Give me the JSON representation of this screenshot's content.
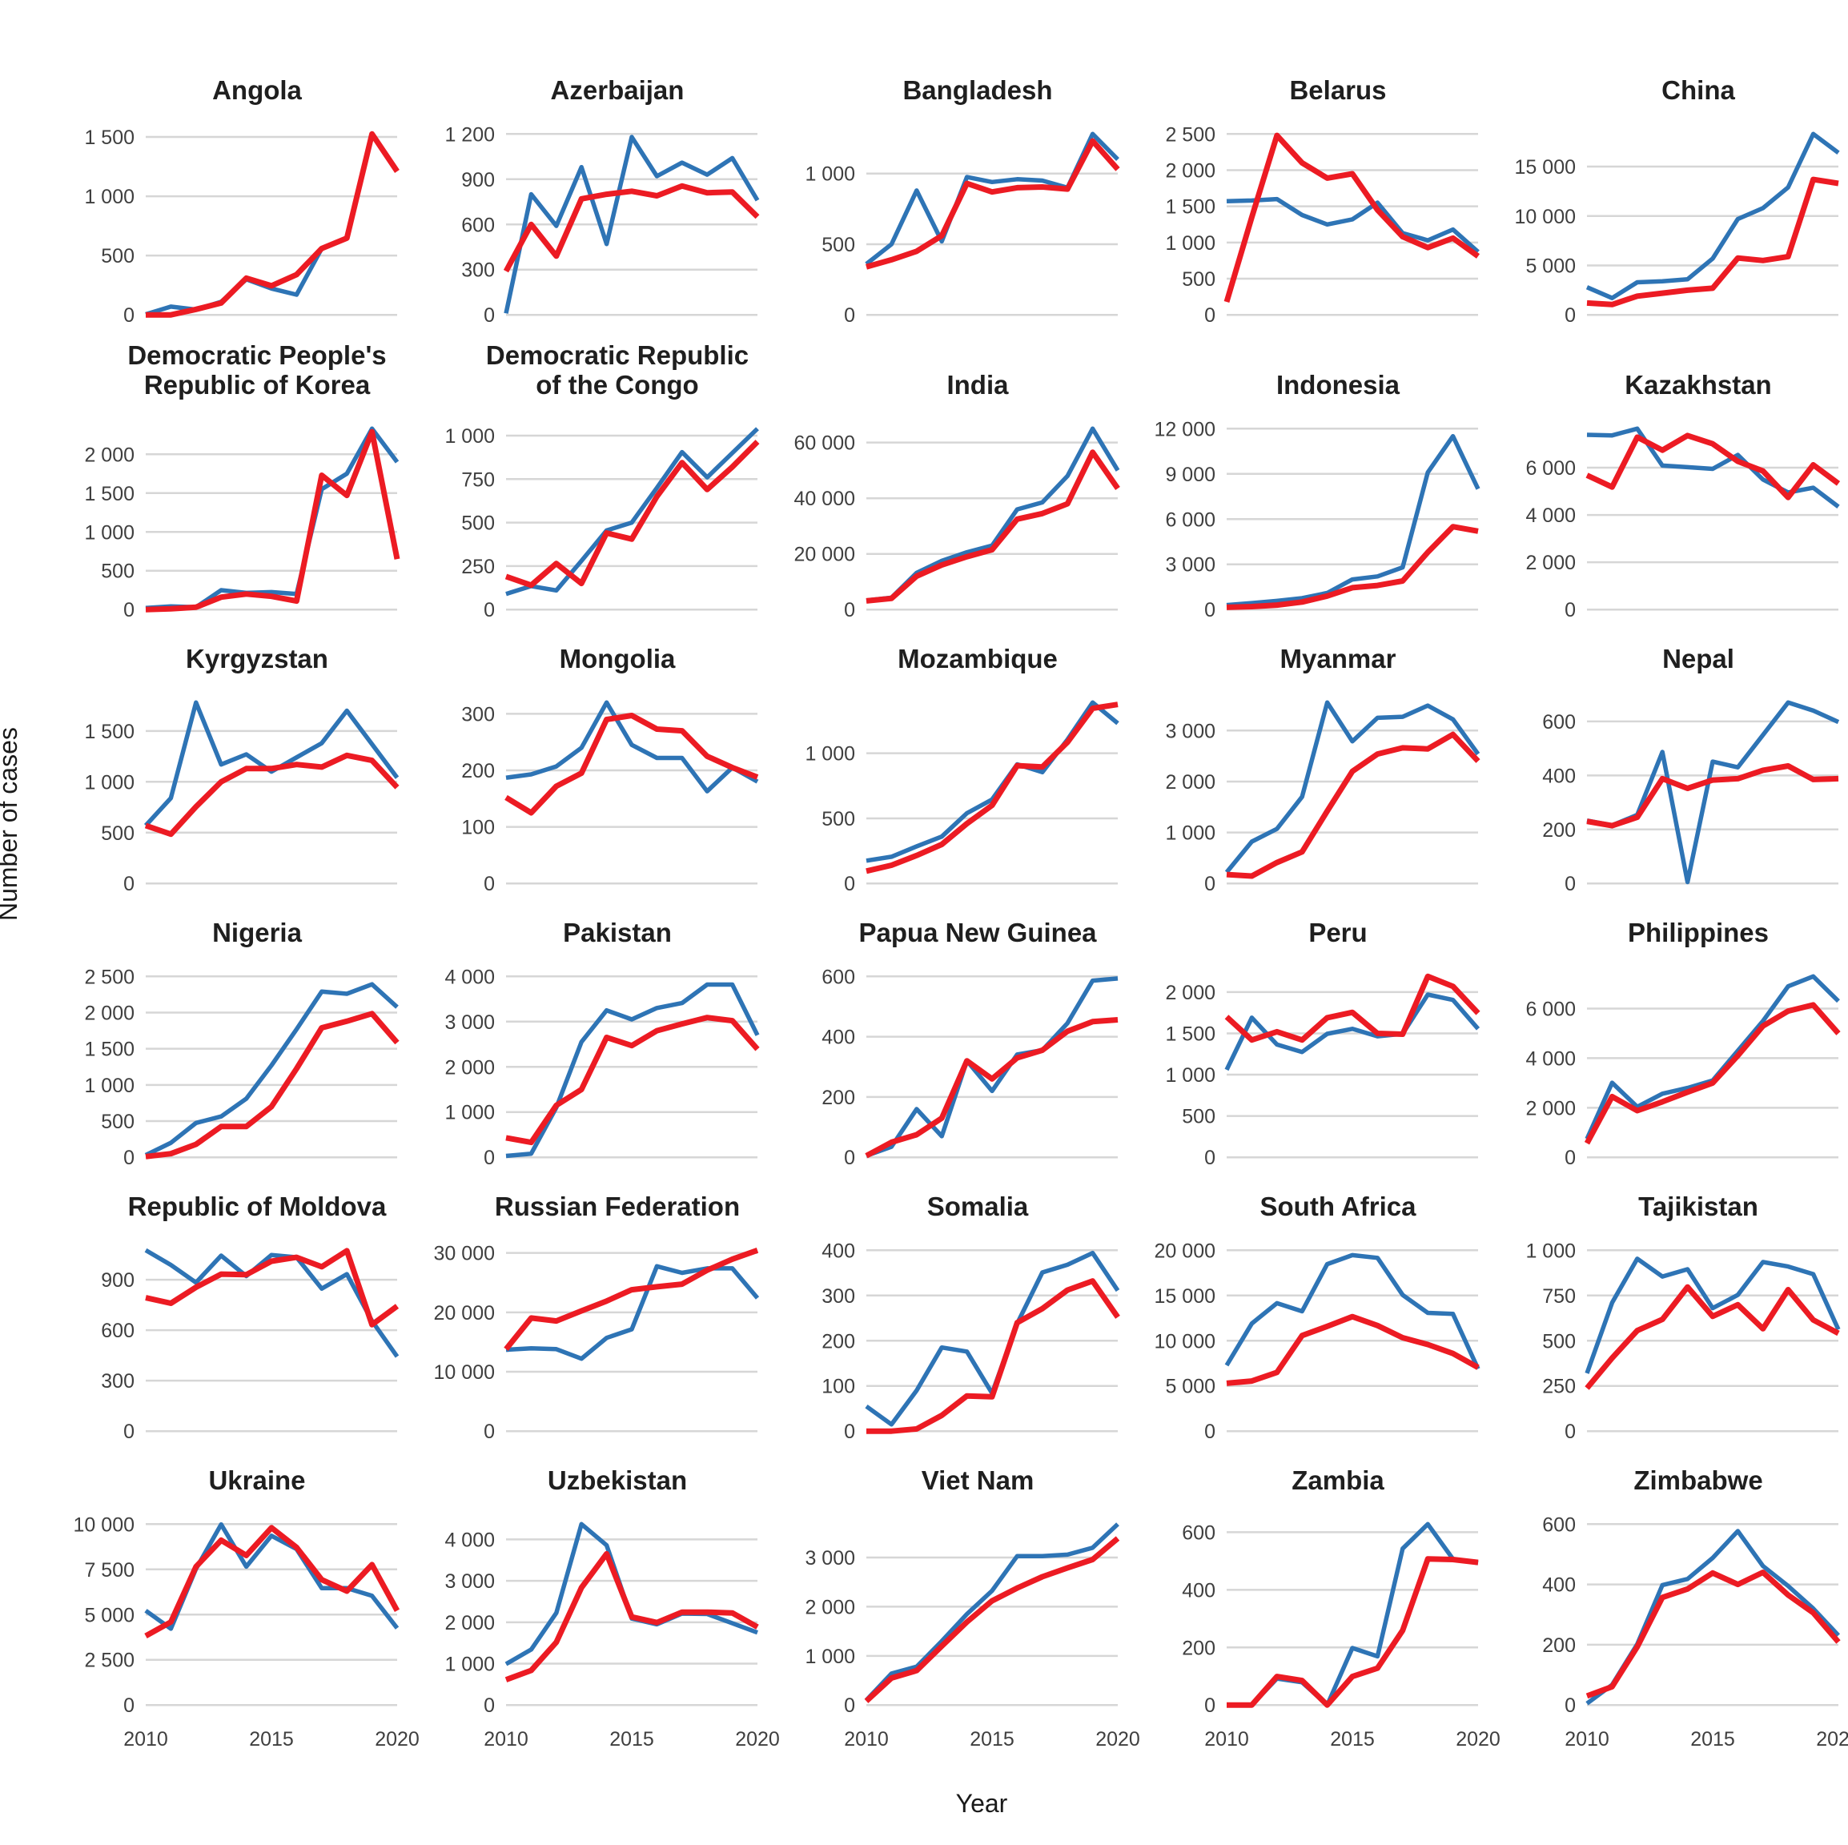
{
  "figure": {
    "y_axis_title": "Number of cases",
    "x_axis_title": "Year"
  },
  "colors": {
    "series_blue": "#2E74B5",
    "series_red": "#EC1B23",
    "gridline": "#D6D6D6",
    "tick_text": "#3F3F3F",
    "title_text": "#1F1F1F"
  },
  "chart_data": {
    "type": "line",
    "x": [
      2010,
      2011,
      2012,
      2013,
      2014,
      2015,
      2016,
      2017,
      2018,
      2019,
      2020
    ],
    "x_shown_ticks": [
      "2010",
      "2015",
      "2020"
    ],
    "ylabel": "Number of cases",
    "xlabel": "Year",
    "grid": "horizontal-only",
    "legend": "none",
    "series_names": [
      "series_blue",
      "series_red"
    ],
    "facets": [
      {
        "title": "Angola",
        "y_ticks": [
          0,
          500,
          1000,
          1500
        ],
        "blue": [
          5,
          70,
          45,
          110,
          300,
          222,
          170,
          560,
          null,
          null,
          null
        ],
        "red": [
          0,
          0,
          47,
          100,
          310,
          245,
          340,
          560,
          647,
          1525,
          1210
        ]
      },
      {
        "title": "Azerbaijan",
        "y_ticks": [
          0,
          300,
          600,
          900,
          1200
        ],
        "blue": [
          10,
          800,
          590,
          980,
          470,
          1180,
          920,
          1010,
          930,
          1040,
          760
        ],
        "red": [
          290,
          600,
          390,
          770,
          800,
          820,
          790,
          855,
          810,
          815,
          650
        ]
      },
      {
        "title": "Bangladesh",
        "y_ticks": [
          0,
          500,
          1000
        ],
        "blue": [
          360,
          500,
          880,
          520,
          975,
          940,
          960,
          950,
          900,
          1280,
          1100
        ],
        "red": [
          340,
          390,
          450,
          560,
          930,
          870,
          900,
          905,
          890,
          1230,
          1030
        ]
      },
      {
        "title": "Belarus",
        "y_ticks": [
          0,
          500,
          1000,
          1500,
          2000,
          2500
        ],
        "blue": [
          1570,
          1580,
          1600,
          1380,
          1250,
          1320,
          1550,
          1130,
          1030,
          1180,
          870
        ],
        "red": [
          180,
          1350,
          2480,
          2100,
          1890,
          1950,
          1450,
          1080,
          930,
          1060,
          810
        ]
      },
      {
        "title": "China",
        "y_ticks": [
          0,
          5000,
          10000,
          15000
        ],
        "blue": [
          2800,
          1700,
          3300,
          3400,
          3600,
          5700,
          9700,
          10800,
          12900,
          18300,
          16400
        ],
        "red": [
          1200,
          1050,
          1900,
          2200,
          2500,
          2700,
          5750,
          5500,
          5900,
          13700,
          13300
        ]
      },
      {
        "title": "Democratic People's Republic of Korea",
        "y_ticks": [
          0,
          500,
          1000,
          1500,
          2000
        ],
        "blue": [
          20,
          40,
          30,
          250,
          215,
          225,
          200,
          1550,
          1750,
          2330,
          1900
        ],
        "red": [
          0,
          10,
          30,
          160,
          200,
          170,
          110,
          1730,
          1470,
          2290,
          650
        ]
      },
      {
        "title": "Democratic Republic of the Congo",
        "y_ticks": [
          0,
          250,
          500,
          750,
          1000
        ],
        "blue": [
          90,
          135,
          110,
          280,
          455,
          500,
          700,
          905,
          760,
          900,
          1040
        ],
        "red": [
          190,
          140,
          265,
          150,
          440,
          405,
          650,
          845,
          690,
          820,
          965
        ]
      },
      {
        "title": "India",
        "y_ticks": [
          0,
          20000,
          40000,
          60000
        ],
        "blue": [
          3300,
          4300,
          13200,
          17500,
          20600,
          23000,
          36000,
          38500,
          48000,
          65000,
          50000
        ],
        "red": [
          3100,
          4000,
          12000,
          16000,
          19000,
          21500,
          32500,
          34500,
          38000,
          56500,
          43500
        ]
      },
      {
        "title": "Indonesia",
        "y_ticks": [
          0,
          3000,
          6000,
          9000,
          12000
        ],
        "blue": [
          300,
          430,
          575,
          755,
          1100,
          2000,
          2200,
          2800,
          9100,
          11500,
          8000
        ],
        "red": [
          150,
          200,
          300,
          500,
          900,
          1450,
          1600,
          1900,
          3800,
          5500,
          5200
        ]
      },
      {
        "title": "Kazakhstan",
        "y_ticks": [
          0,
          2000,
          4000,
          6000
        ],
        "blue": [
          7390,
          7365,
          7650,
          6090,
          6020,
          5950,
          6540,
          5500,
          4950,
          5150,
          4350
        ],
        "red": [
          5680,
          5180,
          7290,
          6740,
          7360,
          7010,
          6270,
          5860,
          4740,
          6120,
          5330
        ]
      },
      {
        "title": "Kyrgyzstan",
        "y_ticks": [
          0,
          500,
          1000,
          1500
        ],
        "blue": [
          570,
          840,
          1780,
          1170,
          1270,
          1100,
          1240,
          1380,
          1700,
          1370,
          1040
        ],
        "red": [
          570,
          485,
          755,
          1000,
          1130,
          1130,
          1170,
          1145,
          1260,
          1210,
          945
        ]
      },
      {
        "title": "Mongolia",
        "y_ticks": [
          0,
          100,
          200,
          300
        ],
        "blue": [
          187,
          193,
          207,
          240,
          320,
          245,
          222,
          222,
          163,
          205,
          180
        ],
        "red": [
          152,
          125,
          172,
          195,
          290,
          297,
          273,
          270,
          225,
          205,
          188
        ]
      },
      {
        "title": "Mozambique",
        "y_ticks": [
          0,
          500,
          1000
        ],
        "blue": [
          175,
          205,
          285,
          360,
          540,
          645,
          915,
          855,
          1105,
          1390,
          1230
        ],
        "red": [
          95,
          140,
          215,
          300,
          460,
          600,
          905,
          895,
          1085,
          1345,
          1375
        ]
      },
      {
        "title": "Myanmar",
        "y_ticks": [
          0,
          1000,
          2000,
          3000
        ],
        "blue": [
          220,
          820,
          1070,
          1700,
          3550,
          2790,
          3250,
          3270,
          3490,
          3220,
          2540
        ],
        "red": [
          175,
          145,
          410,
          620,
          1420,
          2200,
          2540,
          2660,
          2640,
          2925,
          2400
        ]
      },
      {
        "title": "Nepal",
        "y_ticks": [
          0,
          200,
          400,
          600
        ],
        "blue": [
          233,
          215,
          254,
          487,
          5,
          451,
          430,
          550,
          670,
          640,
          598
        ],
        "red": [
          230,
          214,
          245,
          388,
          352,
          383,
          388,
          419,
          435,
          385,
          388
        ]
      },
      {
        "title": "Nigeria",
        "y_ticks": [
          0,
          500,
          1000,
          1500,
          2000,
          2500
        ],
        "blue": [
          30,
          200,
          475,
          565,
          810,
          1270,
          1770,
          2290,
          2260,
          2390,
          2075
        ],
        "red": [
          10,
          50,
          180,
          425,
          425,
          700,
          1225,
          1790,
          1880,
          1985,
          1585
        ]
      },
      {
        "title": "Pakistan",
        "y_ticks": [
          0,
          1000,
          2000,
          3000,
          4000
        ],
        "blue": [
          30,
          80,
          1100,
          2550,
          3250,
          3050,
          3300,
          3410,
          3820,
          3820,
          2700
        ],
        "red": [
          430,
          330,
          1150,
          1500,
          2650,
          2470,
          2800,
          2950,
          3090,
          3020,
          2390
        ]
      },
      {
        "title": "Papua New Guinea",
        "y_ticks": [
          0,
          200,
          400,
          600
        ],
        "blue": [
          5,
          35,
          160,
          70,
          320,
          220,
          341,
          355,
          445,
          586,
          593
        ],
        "red": [
          5,
          50,
          75,
          130,
          320,
          260,
          330,
          355,
          418,
          450,
          456
        ]
      },
      {
        "title": "Peru",
        "y_ticks": [
          0,
          500,
          1000,
          1500,
          2000
        ],
        "blue": [
          1060,
          1690,
          1365,
          1275,
          1495,
          1555,
          1465,
          1495,
          1970,
          1905,
          1555
        ],
        "red": [
          1700,
          1420,
          1520,
          1420,
          1690,
          1755,
          1500,
          1490,
          2190,
          2070,
          1745
        ]
      },
      {
        "title": "Philippines",
        "y_ticks": [
          0,
          2000,
          4000,
          6000
        ],
        "blue": [
          740,
          3010,
          2035,
          2565,
          2800,
          3100,
          4300,
          5500,
          6900,
          7300,
          6300
        ],
        "red": [
          565,
          2450,
          1880,
          2240,
          2630,
          3000,
          4100,
          5300,
          5900,
          6150,
          5000
        ]
      },
      {
        "title": "Republic of Moldova",
        "y_ticks": [
          0,
          300,
          600,
          900
        ],
        "blue": [
          1075,
          988,
          883,
          1043,
          922,
          1047,
          1033,
          847,
          933,
          655,
          443
        ],
        "red": [
          793,
          760,
          855,
          933,
          930,
          1010,
          1033,
          977,
          1072,
          633,
          743
        ]
      },
      {
        "title": "Russian Federation",
        "y_ticks": [
          0,
          10000,
          20000,
          30000
        ],
        "blue": [
          13700,
          13950,
          13800,
          12200,
          15700,
          17150,
          27750,
          26650,
          27400,
          27400,
          22400
        ],
        "red": [
          13800,
          19050,
          18550,
          20250,
          21900,
          23800,
          24300,
          24750,
          27100,
          28950,
          30450
        ]
      },
      {
        "title": "Somalia",
        "y_ticks": [
          0,
          100,
          200,
          300,
          400
        ],
        "blue": [
          55,
          15,
          90,
          185,
          176,
          84,
          238,
          351,
          368,
          394,
          311
        ],
        "red": [
          0,
          0,
          5,
          35,
          78,
          76,
          240,
          271,
          312,
          332,
          252
        ]
      },
      {
        "title": "South Africa",
        "y_ticks": [
          0,
          5000,
          10000,
          15000,
          20000
        ],
        "blue": [
          7280,
          11900,
          14150,
          13250,
          18470,
          19460,
          19160,
          15060,
          13080,
          12960,
          6890
        ],
        "red": [
          5300,
          5540,
          6500,
          10570,
          11590,
          12660,
          11680,
          10330,
          9580,
          8590,
          7040
        ]
      },
      {
        "title": "Tajikistan",
        "y_ticks": [
          0,
          250,
          500,
          750,
          1000
        ],
        "blue": [
          320,
          710,
          953,
          855,
          895,
          680,
          753,
          935,
          910,
          868,
          562
        ],
        "red": [
          238,
          404,
          556,
          618,
          797,
          635,
          699,
          566,
          782,
          615,
          541
        ]
      },
      {
        "title": "Ukraine",
        "y_ticks": [
          0,
          2500,
          5000,
          7500,
          10000
        ],
        "blue": [
          5220,
          4220,
          7530,
          9980,
          7650,
          9360,
          8620,
          6460,
          6460,
          6040,
          4250
        ],
        "red": [
          3820,
          4590,
          7650,
          9110,
          8270,
          9800,
          8710,
          6930,
          6300,
          7760,
          5220
        ]
      },
      {
        "title": "Uzbekistan",
        "y_ticks": [
          0,
          1000,
          2000,
          3000,
          4000
        ],
        "blue": [
          990,
          1340,
          2225,
          4370,
          3860,
          2090,
          1950,
          2210,
          2200,
          1975,
          1750
        ],
        "red": [
          612,
          836,
          1517,
          2837,
          3653,
          2129,
          1993,
          2245,
          2245,
          2225,
          1884
        ]
      },
      {
        "title": "Viet Nam",
        "y_ticks": [
          0,
          1000,
          2000,
          3000
        ],
        "blue": [
          100,
          640,
          780,
          1300,
          1850,
          2325,
          3030,
          3030,
          3060,
          3200,
          3680
        ],
        "red": [
          80,
          550,
          700,
          1200,
          1690,
          2120,
          2380,
          2610,
          2790,
          2960,
          3390
        ]
      },
      {
        "title": "Zambia",
        "y_ticks": [
          0,
          200,
          400,
          600
        ],
        "blue": [
          0,
          0,
          92,
          79,
          0,
          198,
          169,
          543,
          628,
          507,
          493
        ],
        "red": [
          0,
          0,
          99,
          85,
          0,
          99,
          128,
          259,
          507,
          505,
          495
        ]
      },
      {
        "title": "Zimbabwe",
        "y_ticks": [
          0,
          200,
          400,
          600
        ],
        "blue": [
          5,
          67,
          202,
          398,
          418,
          488,
          577,
          461,
          395,
          320,
          231
        ],
        "red": [
          30,
          61,
          193,
          357,
          385,
          438,
          400,
          440,
          365,
          306,
          209
        ]
      }
    ]
  }
}
